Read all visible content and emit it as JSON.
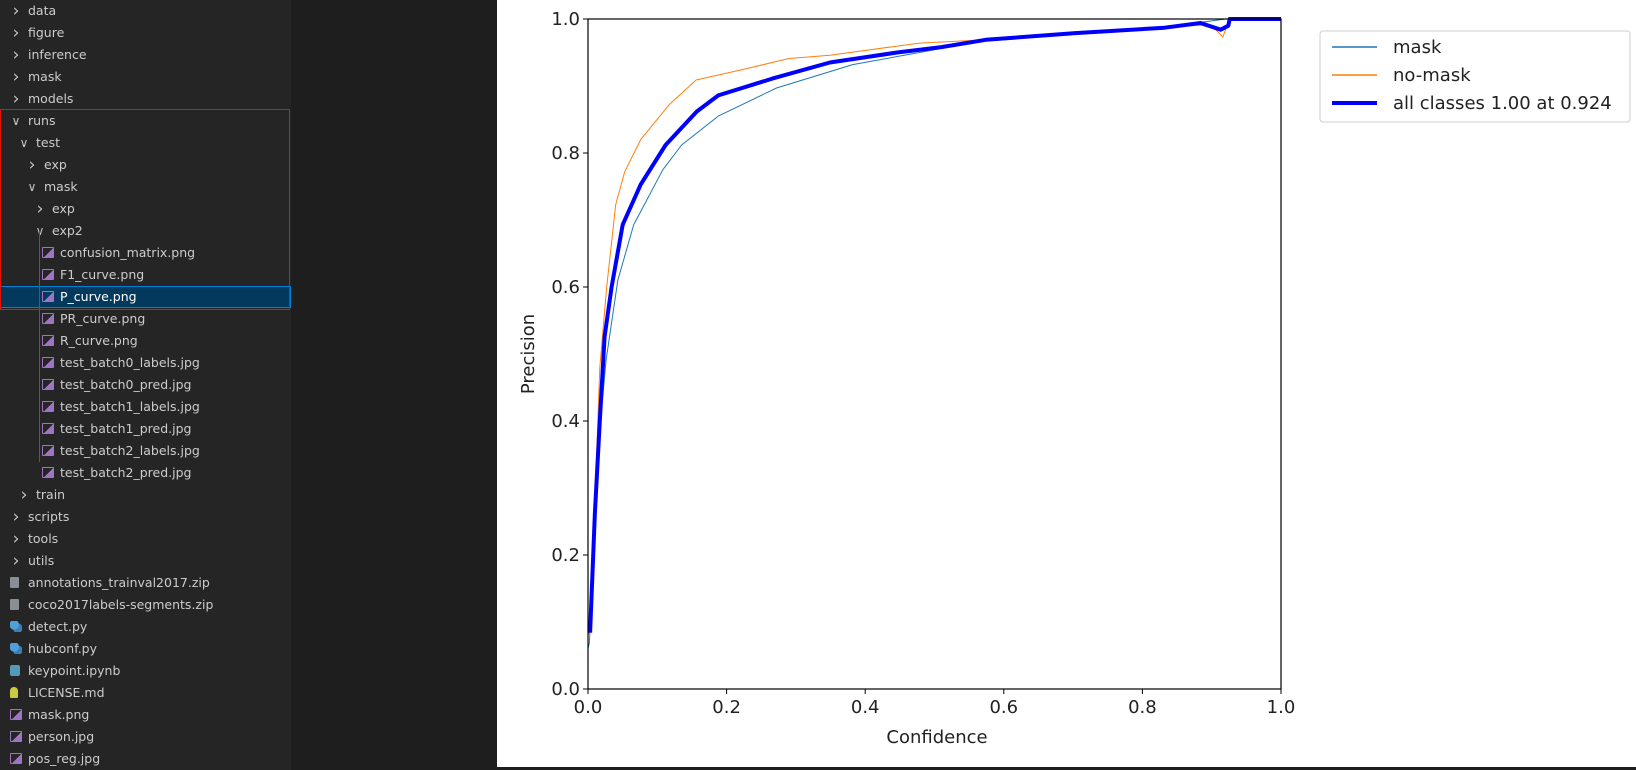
{
  "explorer": {
    "items": [
      {
        "label": "data",
        "depth": 0,
        "kind": "folder",
        "open": false
      },
      {
        "label": "figure",
        "depth": 0,
        "kind": "folder",
        "open": false
      },
      {
        "label": "inference",
        "depth": 0,
        "kind": "folder",
        "open": false
      },
      {
        "label": "mask",
        "depth": 0,
        "kind": "folder",
        "open": false
      },
      {
        "label": "models",
        "depth": 0,
        "kind": "folder",
        "open": false
      },
      {
        "label": "runs",
        "depth": 0,
        "kind": "folder",
        "open": true
      },
      {
        "label": "test",
        "depth": 1,
        "kind": "folder",
        "open": true
      },
      {
        "label": "exp",
        "depth": 2,
        "kind": "folder",
        "open": false
      },
      {
        "label": "mask",
        "depth": 2,
        "kind": "folder",
        "open": true
      },
      {
        "label": "exp",
        "depth": 3,
        "kind": "folder",
        "open": false
      },
      {
        "label": "exp2",
        "depth": 3,
        "kind": "folder",
        "open": true
      },
      {
        "label": "confusion_matrix.png",
        "depth": 4,
        "kind": "file",
        "icon": "image"
      },
      {
        "label": "F1_curve.png",
        "depth": 4,
        "kind": "file",
        "icon": "image"
      },
      {
        "label": "P_curve.png",
        "depth": 4,
        "kind": "file",
        "icon": "image",
        "selected": true
      },
      {
        "label": "PR_curve.png",
        "depth": 4,
        "kind": "file",
        "icon": "image"
      },
      {
        "label": "R_curve.png",
        "depth": 4,
        "kind": "file",
        "icon": "image"
      },
      {
        "label": "test_batch0_labels.jpg",
        "depth": 4,
        "kind": "file",
        "icon": "image"
      },
      {
        "label": "test_batch0_pred.jpg",
        "depth": 4,
        "kind": "file",
        "icon": "image"
      },
      {
        "label": "test_batch1_labels.jpg",
        "depth": 4,
        "kind": "file",
        "icon": "image"
      },
      {
        "label": "test_batch1_pred.jpg",
        "depth": 4,
        "kind": "file",
        "icon": "image"
      },
      {
        "label": "test_batch2_labels.jpg",
        "depth": 4,
        "kind": "file",
        "icon": "image"
      },
      {
        "label": "test_batch2_pred.jpg",
        "depth": 4,
        "kind": "file",
        "icon": "image"
      },
      {
        "label": "train",
        "depth": 1,
        "kind": "folder",
        "open": false
      },
      {
        "label": "scripts",
        "depth": 0,
        "kind": "folder",
        "open": false
      },
      {
        "label": "tools",
        "depth": 0,
        "kind": "folder",
        "open": false
      },
      {
        "label": "utils",
        "depth": 0,
        "kind": "folder",
        "open": false
      },
      {
        "label": "annotations_trainval2017.zip",
        "depth": 0,
        "kind": "file",
        "icon": "zip"
      },
      {
        "label": "coco2017labels-segments.zip",
        "depth": 0,
        "kind": "file",
        "icon": "zip"
      },
      {
        "label": "detect.py",
        "depth": 0,
        "kind": "file",
        "icon": "python"
      },
      {
        "label": "hubconf.py",
        "depth": 0,
        "kind": "file",
        "icon": "python"
      },
      {
        "label": "keypoint.ipynb",
        "depth": 0,
        "kind": "file",
        "icon": "notebook"
      },
      {
        "label": "LICENSE.md",
        "depth": 0,
        "kind": "file",
        "icon": "license"
      },
      {
        "label": "mask.png",
        "depth": 0,
        "kind": "file",
        "icon": "image"
      },
      {
        "label": "person.jpg",
        "depth": 0,
        "kind": "file",
        "icon": "image"
      },
      {
        "label": "pos_reg.jpg",
        "depth": 0,
        "kind": "file",
        "icon": "image"
      }
    ]
  },
  "colors": {
    "highlight_box": "#e51400",
    "selected_bg": "#04395e"
  },
  "chart_data": {
    "type": "line",
    "xlabel": "Confidence",
    "ylabel": "Precision",
    "xlim": [
      0,
      1
    ],
    "ylim": [
      0,
      1
    ],
    "xticks": [
      "0.0",
      "0.2",
      "0.4",
      "0.6",
      "0.8",
      "1.0"
    ],
    "yticks": [
      "0.0",
      "0.2",
      "0.4",
      "0.6",
      "0.8",
      "1.0"
    ],
    "grid": false,
    "legend_position": "outside-top-right",
    "series": [
      {
        "name": "mask",
        "color": "#1f77b4",
        "width": 1,
        "x": [
          0,
          0.002,
          0.01,
          0.017,
          0.026,
          0.043,
          0.066,
          0.108,
          0.135,
          0.188,
          0.272,
          0.382,
          0.51,
          0.574,
          0.703,
          0.832,
          0.884,
          0.92,
          1.0
        ],
        "y": [
          0.06,
          0.069,
          0.25,
          0.387,
          0.49,
          0.61,
          0.693,
          0.775,
          0.812,
          0.855,
          0.897,
          0.932,
          0.956,
          0.969,
          0.979,
          0.989,
          0.995,
          1.0,
          1.0
        ]
      },
      {
        "name": "no-mask",
        "color": "#ff7f0e",
        "width": 1,
        "x": [
          0,
          0.003,
          0.01,
          0.017,
          0.027,
          0.04,
          0.053,
          0.076,
          0.117,
          0.156,
          0.221,
          0.29,
          0.349,
          0.478,
          0.574,
          0.703,
          0.832,
          0.884,
          0.905,
          0.916,
          0.926,
          1.0
        ],
        "y": [
          0.08,
          0.09,
          0.28,
          0.48,
          0.6,
          0.723,
          0.772,
          0.82,
          0.872,
          0.909,
          0.924,
          0.941,
          0.946,
          0.964,
          0.969,
          0.978,
          0.987,
          0.991,
          0.985,
          0.973,
          1.0,
          1.0
        ]
      },
      {
        "name": "all classes 1.00 at 0.924",
        "color": "#0000ff",
        "width": 4,
        "x": [
          0.003,
          0.01,
          0.017,
          0.024,
          0.034,
          0.05,
          0.076,
          0.112,
          0.157,
          0.188,
          0.266,
          0.349,
          0.446,
          0.51,
          0.574,
          0.703,
          0.832,
          0.884,
          0.913,
          0.924,
          0.926,
          1.0
        ],
        "y": [
          0.084,
          0.263,
          0.4,
          0.526,
          0.6,
          0.693,
          0.753,
          0.812,
          0.862,
          0.886,
          0.911,
          0.935,
          0.95,
          0.958,
          0.969,
          0.979,
          0.987,
          0.994,
          0.984,
          0.99,
          1.0,
          1.0
        ]
      }
    ]
  }
}
